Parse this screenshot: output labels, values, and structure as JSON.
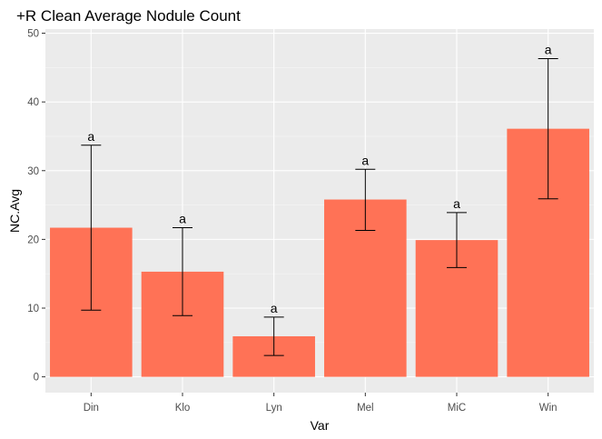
{
  "chart_data": {
    "type": "bar",
    "title": "+R Clean Average Nodule Count",
    "xlabel": "Var",
    "ylabel": "NC.Avg",
    "categories": [
      "Din",
      "Klo",
      "Lyn",
      "Mel",
      "MiC",
      "Win"
    ],
    "values": [
      21.7,
      15.3,
      5.9,
      25.8,
      19.9,
      36.1
    ],
    "error_low": [
      9.7,
      8.9,
      3.1,
      21.3,
      15.9,
      25.9
    ],
    "error_high": [
      33.7,
      21.7,
      8.7,
      30.2,
      23.9,
      46.3
    ],
    "annotations": [
      "a",
      "a",
      "a",
      "a",
      "a",
      "a"
    ],
    "ylim": [
      -2.3,
      50.6
    ],
    "yticks": [
      0,
      10,
      20,
      30,
      40,
      50
    ],
    "grid": true,
    "bar_color": "#FF7256",
    "panel_background": "#EBEBEB"
  }
}
